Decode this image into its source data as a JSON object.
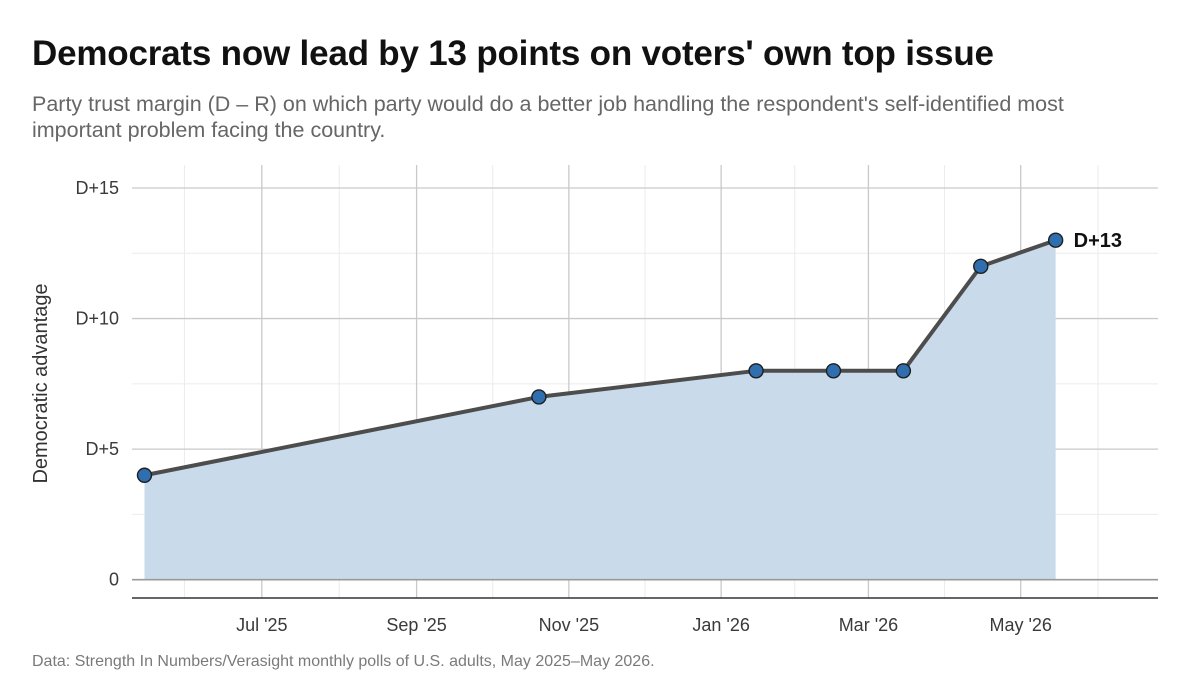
{
  "title": "Democrats now lead by 13 points on voters' own top issue",
  "subtitle": "Party trust margin (D – R) on which party would do a better job handling the respondent's self-identified most important problem facing the country.",
  "caption": "Data: Strength In Numbers/Verasight monthly polls of U.S. adults, May 2025–May 2026.",
  "colors": {
    "area_fill": "#c9dbeb",
    "line": "#4d4d4d",
    "point_fill": "#2f6fb0",
    "point_stroke": "#1f1f1f",
    "grid_major": "#c9c9c9",
    "grid_minor": "#ebebeb",
    "axis": "#333333",
    "tick_text": "#3a3a3a"
  },
  "chart_data": {
    "type": "area",
    "xlabel": "",
    "ylabel": "Democratic advantage",
    "x": [
      "2025-05-15",
      "2025-10-20",
      "2026-01-15",
      "2026-02-15",
      "2026-03-15",
      "2026-04-15",
      "2026-05-15"
    ],
    "values": [
      4,
      7,
      8,
      8,
      8,
      12,
      13
    ],
    "xlim": [
      "2025-05-10",
      "2026-06-25"
    ],
    "ylim": [
      -0.7,
      15
    ],
    "x_ticks": [
      {
        "date": "2025-07-01",
        "label": "Jul '25"
      },
      {
        "date": "2025-09-01",
        "label": "Sep '25"
      },
      {
        "date": "2025-11-01",
        "label": "Nov '25"
      },
      {
        "date": "2026-01-01",
        "label": "Jan '26"
      },
      {
        "date": "2026-03-01",
        "label": "Mar '26"
      },
      {
        "date": "2026-05-01",
        "label": "May '26"
      }
    ],
    "y_ticks": [
      {
        "value": 0,
        "label": "0"
      },
      {
        "value": 5,
        "label": "D+5"
      },
      {
        "value": 10,
        "label": "D+10"
      },
      {
        "value": 15,
        "label": "D+15"
      }
    ],
    "grid": true,
    "end_label": "D+13"
  }
}
